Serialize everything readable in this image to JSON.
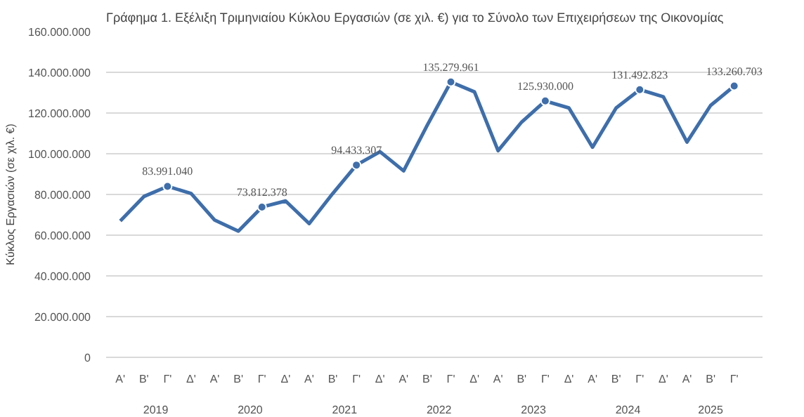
{
  "chart_data": {
    "type": "line",
    "title": "Γράφημα 1. Εξέλιξη Τριμηνιαίου Κύκλου Εργασιών (σε χιλ. €) για το Σύνολο των Επιχειρήσεων της Οικονομίας",
    "ylabel": "Κύκλος Εργασιών (σε χιλ. €)",
    "categories": [
      "Α'",
      "Β'",
      "Γ'",
      "Δ'",
      "Α'",
      "Β'",
      "Γ'",
      "Δ'",
      "Α'",
      "Β'",
      "Γ'",
      "Δ'",
      "Α'",
      "Β'",
      "Γ'",
      "Δ'",
      "Α'",
      "Β'",
      "Γ'",
      "Δ'",
      "Α'",
      "Β'",
      "Γ'",
      "Δ'",
      "Α'",
      "Β'",
      "Γ'"
    ],
    "annotations": [
      "2019",
      "2020",
      "2021",
      "2022",
      "2023",
      "2024",
      "2025"
    ],
    "series": [
      {
        "color": "#3e6eab",
        "values": [
          67000000,
          79000000,
          83991040,
          80500000,
          67400000,
          62000000,
          73812378,
          76800000,
          65700000,
          80500000,
          94433307,
          101000000,
          91600000,
          114000000,
          135279961,
          130400000,
          101500000,
          115600000,
          125930000,
          122500000,
          103200000,
          122500000,
          131492823,
          128000000,
          105700000,
          123700000,
          133260703
        ],
        "value_labels": [
          null,
          null,
          "83.991.040",
          null,
          null,
          null,
          "73.812.378",
          null,
          null,
          null,
          "94.433.307",
          null,
          null,
          null,
          "135.279.961",
          null,
          null,
          null,
          "125.930.000",
          null,
          null,
          null,
          "131.492.823",
          null,
          null,
          null,
          "133.260.703"
        ]
      }
    ],
    "ylim": [
      0,
      160000000
    ],
    "yticks": [
      {
        "value": 0,
        "label": "0"
      },
      {
        "value": 20000000,
        "label": "20.000.000"
      },
      {
        "value": 40000000,
        "label": "40.000.000"
      },
      {
        "value": 60000000,
        "label": "60.000.000"
      },
      {
        "value": 80000000,
        "label": "80.000.000"
      },
      {
        "value": 100000000,
        "label": "100.000.000"
      },
      {
        "value": 120000000,
        "label": "120.000.000"
      },
      {
        "value": 140000000,
        "label": "140.000.000"
      },
      {
        "value": 160000000,
        "label": "160.000.000"
      }
    ],
    "grid": "y",
    "line_style": "solid"
  }
}
